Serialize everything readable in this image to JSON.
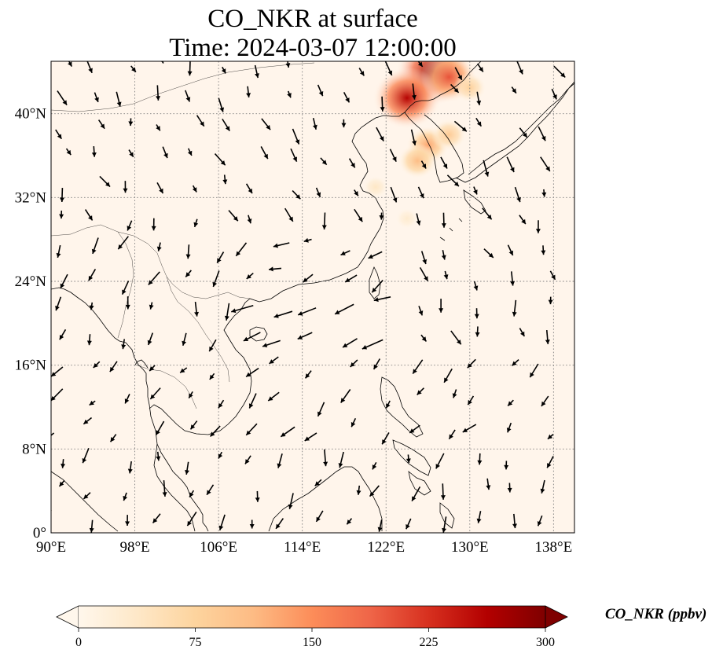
{
  "title": {
    "line1": "CO_NKR at surface",
    "line2": "Time: 2024-03-07 12:00:00"
  },
  "map": {
    "lon_range": [
      90,
      140
    ],
    "lat_range": [
      0,
      45
    ],
    "gridlines": "dotted",
    "lon_ticks": [
      {
        "value": 90,
        "label": "90°E"
      },
      {
        "value": 98,
        "label": "98°E"
      },
      {
        "value": 106,
        "label": "106°E"
      },
      {
        "value": 114,
        "label": "114°E"
      },
      {
        "value": 122,
        "label": "122°E"
      },
      {
        "value": 130,
        "label": "130°E"
      },
      {
        "value": 138,
        "label": "138°E"
      }
    ],
    "lat_ticks": [
      {
        "value": 0,
        "label": "0°"
      },
      {
        "value": 8,
        "label": "8°N"
      },
      {
        "value": 16,
        "label": "16°N"
      },
      {
        "value": 24,
        "label": "24°N"
      },
      {
        "value": 32,
        "label": "32°N"
      },
      {
        "value": 40,
        "label": "40°N"
      }
    ],
    "background_color": "#fff5eb",
    "high_concentration_areas": [
      {
        "lon": 126.5,
        "lat": 44,
        "level": 290
      },
      {
        "lon": 124,
        "lat": 41.5,
        "level": 260
      },
      {
        "lon": 128,
        "lat": 43.5,
        "level": 200
      },
      {
        "lon": 126,
        "lat": 37,
        "level": 130
      },
      {
        "lon": 125,
        "lat": 35.5,
        "level": 110
      },
      {
        "lon": 128,
        "lat": 38,
        "level": 90
      },
      {
        "lon": 130,
        "lat": 42.5,
        "level": 80
      },
      {
        "lon": 121,
        "lat": 33,
        "level": 40
      },
      {
        "lon": 124,
        "lat": 30,
        "level": 30
      }
    ]
  },
  "colorbar": {
    "label": "CO_NKR (ppbv)",
    "colormap": "OrRd",
    "extend": "both",
    "range": [
      0,
      300
    ],
    "colors": [
      "#fff7ec",
      "#fee8c8",
      "#fdd49e",
      "#fdbb84",
      "#fc8d59",
      "#ef6548",
      "#d7301f",
      "#b30000",
      "#7f0000"
    ],
    "ticks": [
      {
        "value": 0,
        "label": "0"
      },
      {
        "value": 75,
        "label": "75"
      },
      {
        "value": 150,
        "label": "150"
      },
      {
        "value": 225,
        "label": "225"
      },
      {
        "value": 300,
        "label": "300"
      }
    ]
  }
}
